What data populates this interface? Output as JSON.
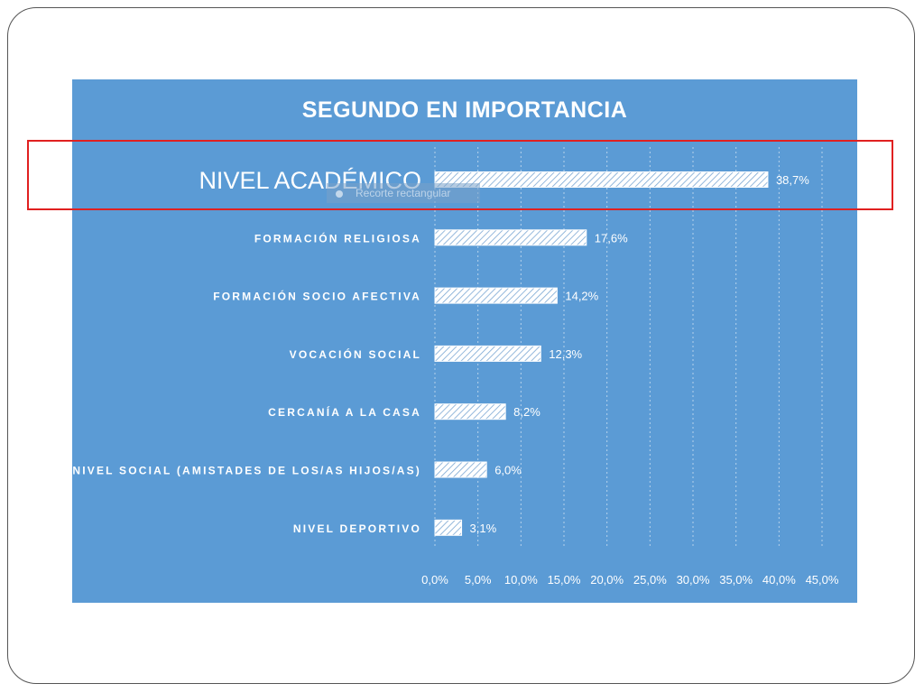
{
  "chart_data": {
    "type": "bar",
    "orientation": "horizontal",
    "title": "SEGUNDO EN IMPORTANCIA",
    "categories": [
      "NIVEL ACADÉMICO",
      "FORMACIÓN RELIGIOSA",
      "FORMACIÓN SOCIO AFECTIVA",
      "VOCACIÓN SOCIAL",
      "CERCANÍA A LA CASA",
      "NIVEL SOCIAL (AMISTADES DE LOS/AS HIJOS/AS)",
      "NIVEL DEPORTIVO"
    ],
    "values": [
      38.7,
      17.6,
      14.2,
      12.3,
      8.2,
      6.0,
      3.1
    ],
    "value_labels": [
      "38,7%",
      "17,6%",
      "14,2%",
      "12,3%",
      "8,2%",
      "6,0%",
      "3,1%"
    ],
    "x_ticks": [
      "0,0%",
      "5,0%",
      "10,0%",
      "15,0%",
      "20,0%",
      "25,0%",
      "30,0%",
      "35,0%",
      "40,0%",
      "45,0%"
    ],
    "xlim": [
      0,
      45
    ],
    "xlabel": "",
    "ylabel": "",
    "grid": "vertical dashed",
    "highlighted_category": "NIVEL ACADÉMICO",
    "colors": {
      "background": "#5b9bd5",
      "bar_fill": "#ffffff",
      "text": "#ffffff",
      "highlight_border": "#e02020"
    }
  },
  "overlay": {
    "snip_label": "Recorte rectangular"
  }
}
